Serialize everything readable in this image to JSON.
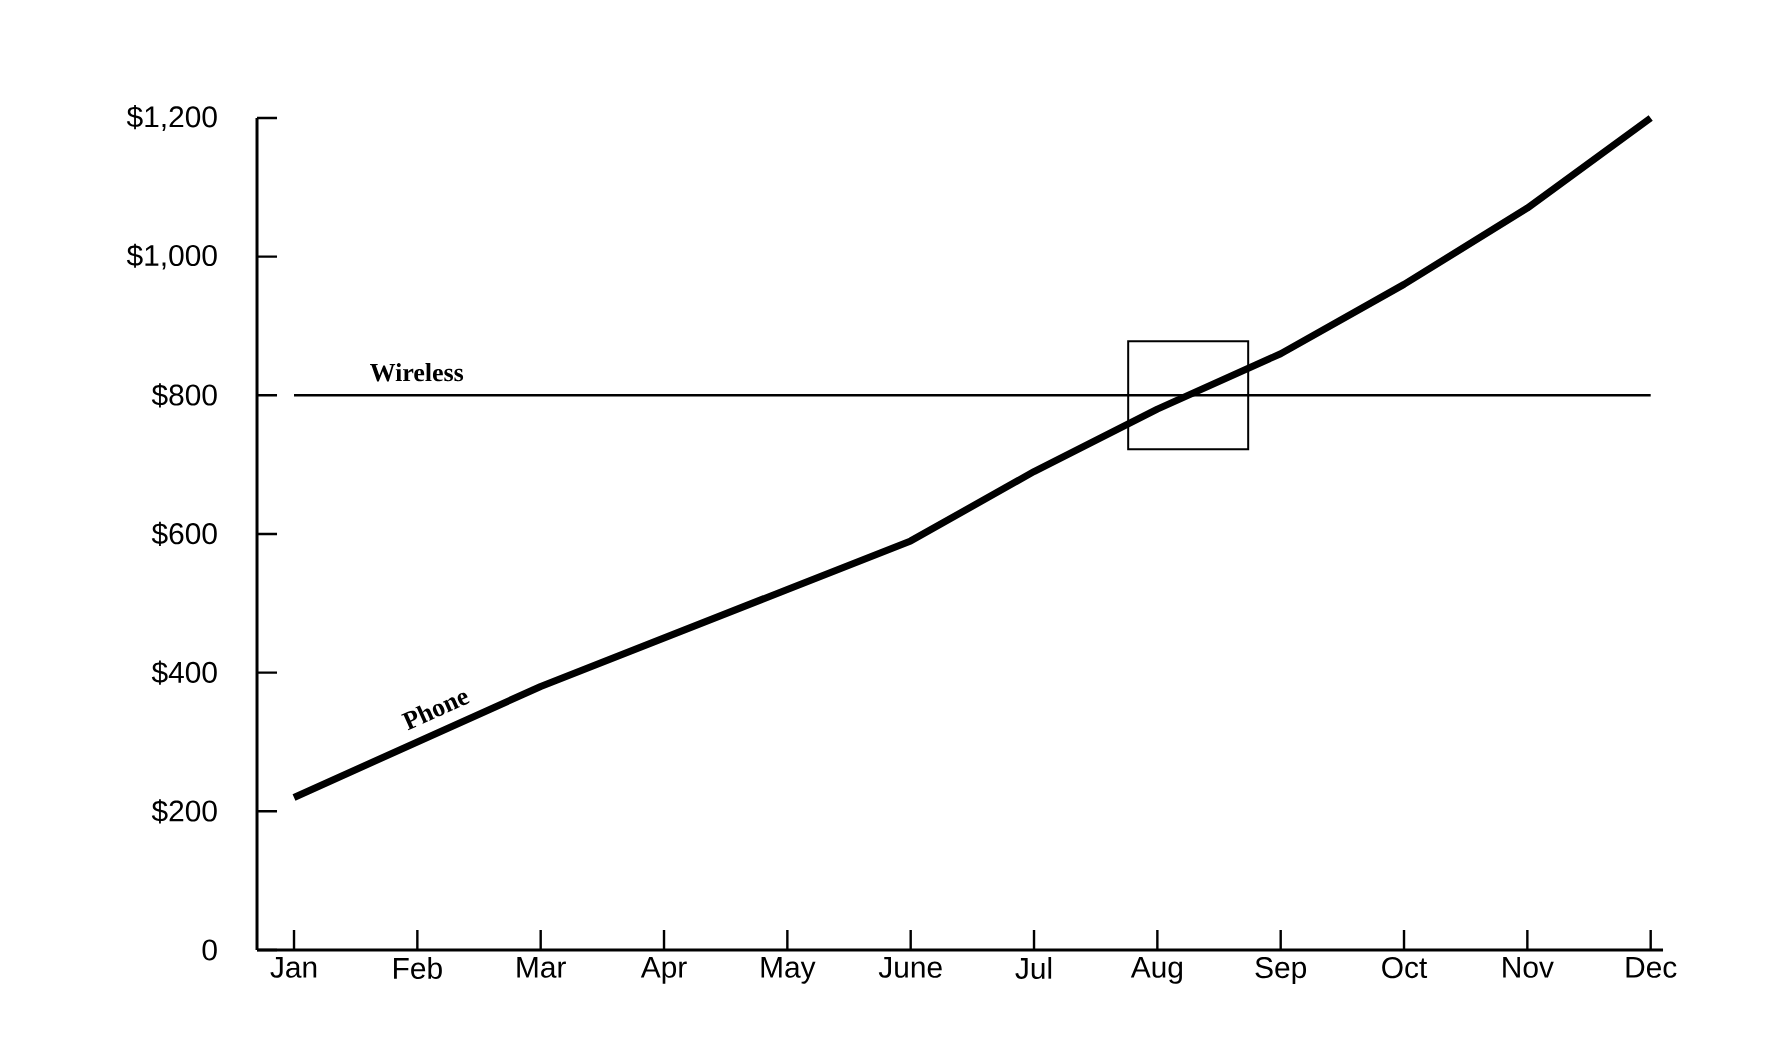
{
  "chart_data": {
    "type": "line",
    "categories": [
      "Jan",
      "Feb",
      "Mar",
      "Apr",
      "May",
      "June",
      "Jul",
      "Aug",
      "Sep",
      "Oct",
      "Nov",
      "Dec"
    ],
    "series": [
      {
        "name": "Phone",
        "color": "#000000",
        "values": [
          220,
          300,
          380,
          450,
          520,
          590,
          690,
          780,
          860,
          960,
          1070,
          1200
        ]
      },
      {
        "name": "Wireless",
        "color": "#000000",
        "values": [
          800,
          800,
          800,
          800,
          800,
          800,
          800,
          800,
          800,
          800,
          800,
          800
        ]
      }
    ],
    "ylim": [
      0,
      1200
    ],
    "yticks": [
      0,
      {
        "value": 200,
        "label": "$200"
      },
      {
        "value": 400,
        "label": "$400"
      },
      {
        "value": 600,
        "label": "$600"
      },
      {
        "value": 800,
        "label": "$800"
      },
      {
        "value": 1000,
        "label": "$1,000"
      },
      {
        "value": 1200,
        "label": "$1,200"
      }
    ],
    "marker": "none",
    "legend": false,
    "grid": false
  }
}
